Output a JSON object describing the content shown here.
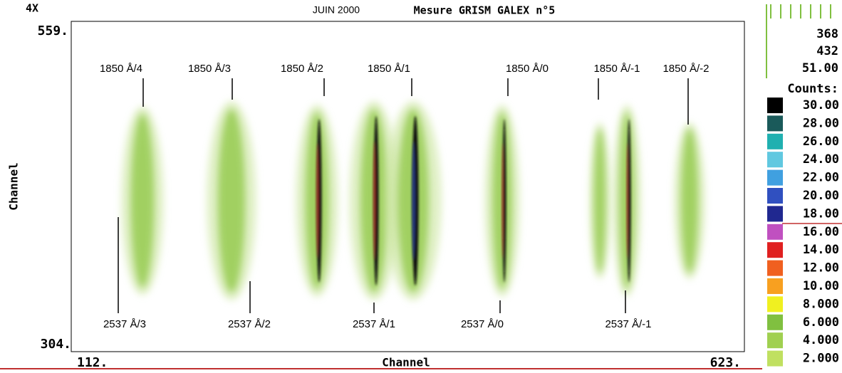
{
  "header": {
    "zoom": "4X",
    "date": "JUIN 2000",
    "title": "Mesure GRISM GALEX n°5"
  },
  "axes": {
    "y_top": "559.",
    "y_bottom": "304.",
    "x_left": "112.",
    "x_right": "623.",
    "x_label": "Channel",
    "y_label": "Channel"
  },
  "colorbar": {
    "top_values": [
      "368",
      "432",
      "51.00"
    ],
    "label": "Counts:",
    "levels": [
      "30.00",
      "28.00",
      "26.00",
      "24.00",
      "22.00",
      "20.00",
      "18.00",
      "16.00",
      "14.00",
      "12.00",
      "10.00",
      "8.000",
      "6.000",
      "4.000",
      "2.000"
    ]
  },
  "annotations": {
    "top": [
      "1850 Å/4",
      "1850 Å/3",
      "1850 Å/2",
      "1850 Å/1",
      "1850 Å/0",
      "1850 Å/-1",
      "1850 Å/-2"
    ],
    "bottom": [
      "2537 Å/3",
      "2537 Å/2",
      "2537 Å/1",
      "2537 Å/0",
      "2537 Å/-1"
    ]
  }
}
